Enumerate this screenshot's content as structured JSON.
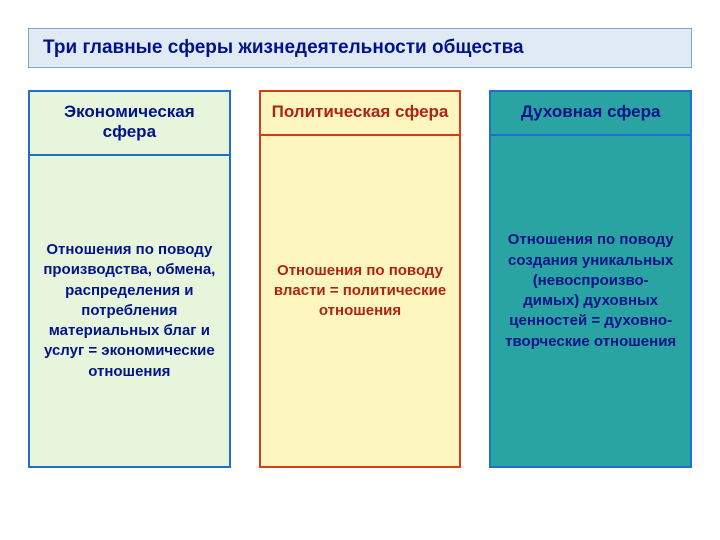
{
  "page": {
    "background": "#ffffff"
  },
  "title": {
    "text": "Три главные сферы жизнедеятельности общества",
    "bg": "#dfeaf5",
    "border": "#7fa7c9",
    "color": "#00138a",
    "fontsize": 19
  },
  "columns": [
    {
      "header": "Экономическая сфера",
      "body": "Отношения по поводу производства, обмена, распределения и потребления материальных благ и  услуг = экономические отношения",
      "bg": "#e6f5dc",
      "border": "#1f6fd1",
      "header_border": "#1f6fd1",
      "header_color": "#00138a",
      "body_color": "#00138a",
      "border_width": 2,
      "header_fontsize": 17,
      "body_fontsize": 15
    },
    {
      "header": "Политическая сфера",
      "body": "Отношения по поводу власти = политические отношения",
      "bg": "#fdf6bf",
      "border": "#d93a1a",
      "header_border": "#d93a1a",
      "header_color": "#b02412",
      "body_color": "#b02412",
      "border_width": 2,
      "header_fontsize": 17,
      "body_fontsize": 15
    },
    {
      "header": "Духовная сфера",
      "body": "Отношения по поводу создания уникальных (невоспроизво-\nдимых) духовных ценностей = духовно-творческие отношения",
      "bg": "#2aa3a3",
      "border": "#1f6fd1",
      "header_border": "#1f6fd1",
      "header_color": "#00138a",
      "body_color": "#00138a",
      "border_width": 2,
      "header_fontsize": 17,
      "body_fontsize": 15
    }
  ]
}
